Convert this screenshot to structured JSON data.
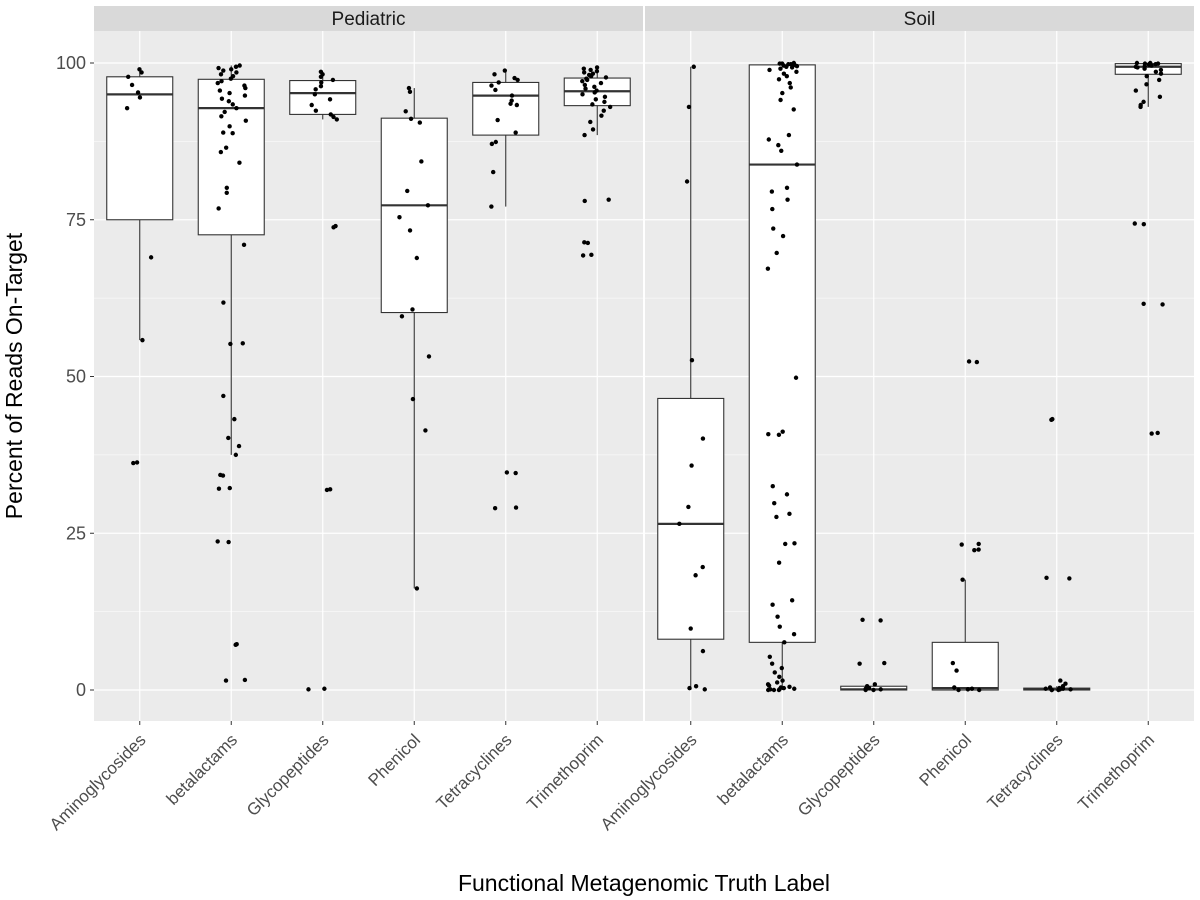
{
  "chart_data": {
    "type": "boxplot",
    "xlabel": "Functional Metagenomic Truth Label",
    "ylabel": "Percent of Reads On-Target",
    "ylim": [
      -5,
      105
    ],
    "yticks": [
      0,
      25,
      50,
      75,
      100
    ],
    "grid": true,
    "legend": "none",
    "categories": [
      "Aminoglycosides",
      "betalactams",
      "Glycopeptides",
      "Phenicol",
      "Tetracyclines",
      "Trimethoprim"
    ],
    "colors": {
      "panel_bg": "#ebebeb",
      "grid": "#ffffff",
      "strip_bg": "#d9d9d9",
      "box_fill": "#ffffff",
      "box_line": "#333333",
      "point": "#000000"
    },
    "facets": [
      {
        "name": "Pediatric",
        "boxes": [
          {
            "category": "Aminoglycosides",
            "whisker_low": 55.8,
            "q1": 75.0,
            "median": 95.0,
            "q3": 97.8,
            "whisker_high": 99.0,
            "points": [
              99.0,
              98.5,
              97.8,
              96.5,
              95.3,
              94.5,
              92.8,
              69.0,
              55.8,
              36.3,
              36.2
            ]
          },
          {
            "category": "betalactams",
            "whisker_low": 37.5,
            "q1": 72.6,
            "median": 92.8,
            "q3": 97.4,
            "whisker_high": 99.6,
            "points": [
              99.6,
              99.4,
              99.2,
              99.0,
              98.8,
              98.5,
              98.2,
              97.9,
              97.5,
              97.1,
              96.8,
              96.4,
              96.0,
              95.6,
              95.2,
              94.8,
              94.3,
              93.9,
              93.4,
              92.8,
              92.2,
              91.5,
              90.8,
              89.9,
              88.9,
              88.8,
              86.5,
              85.8,
              84.1,
              80.1,
              79.3,
              76.8,
              71.0,
              61.8,
              55.3,
              55.2,
              46.9,
              43.2,
              40.2,
              38.9,
              37.5,
              34.3,
              34.2,
              32.2,
              32.1,
              23.7,
              23.6,
              7.3,
              7.2,
              1.6,
              1.5
            ]
          },
          {
            "category": "Glycopeptides",
            "whisker_low": 91.0,
            "q1": 91.8,
            "median": 95.2,
            "q3": 97.2,
            "whisker_high": 98.6,
            "points": [
              98.6,
              98.2,
              97.8,
              97.3,
              96.9,
              96.3,
              95.8,
              95.0,
              94.2,
              93.3,
              92.4,
              91.8,
              91.4,
              91.0,
              74.0,
              73.8,
              32.0,
              31.9,
              0.2,
              0.1
            ]
          },
          {
            "category": "Phenicol",
            "whisker_low": 16.2,
            "q1": 60.2,
            "median": 77.3,
            "q3": 91.2,
            "whisker_high": 96.0,
            "points": [
              96.0,
              95.4,
              92.3,
              91.1,
              90.5,
              84.3,
              79.6,
              77.3,
              75.4,
              73.3,
              68.9,
              60.7,
              59.6,
              53.2,
              46.4,
              41.4,
              16.2
            ]
          },
          {
            "category": "Tetracyclines",
            "whisker_low": 77.1,
            "q1": 88.5,
            "median": 94.8,
            "q3": 96.9,
            "whisker_high": 98.8,
            "points": [
              98.8,
              98.2,
              97.6,
              97.3,
              96.9,
              96.4,
              95.7,
              94.8,
              94.0,
              93.5,
              93.3,
              90.9,
              88.9,
              87.4,
              87.1,
              82.6,
              77.1,
              34.7,
              34.6,
              29.1,
              29.0
            ]
          },
          {
            "category": "Trimethoprim",
            "whisker_low": 88.5,
            "q1": 93.2,
            "median": 95.5,
            "q3": 97.6,
            "whisker_high": 99.3,
            "points": [
              99.3,
              99.1,
              98.9,
              98.7,
              98.5,
              98.3,
              98.1,
              97.9,
              97.7,
              97.5,
              97.3,
              97.1,
              96.8,
              96.5,
              96.2,
              95.9,
              95.6,
              95.3,
              95.0,
              94.6,
              94.2,
              93.8,
              93.4,
              93.0,
              92.4,
              91.6,
              90.6,
              89.4,
              88.5,
              78.2,
              78.0,
              71.4,
              71.3,
              69.4,
              69.3
            ]
          }
        ]
      },
      {
        "name": "Soil",
        "boxes": [
          {
            "category": "Aminoglycosides",
            "whisker_low": 0.0,
            "q1": 8.1,
            "median": 26.5,
            "q3": 46.5,
            "whisker_high": 99.4,
            "points": [
              99.4,
              93.0,
              81.1,
              52.6,
              40.1,
              35.8,
              29.2,
              26.5,
              19.6,
              18.3,
              9.8,
              6.2,
              0.6,
              0.3,
              0.1
            ]
          },
          {
            "category": "betalactams",
            "whisker_low": 0.0,
            "q1": 7.6,
            "median": 83.8,
            "q3": 99.7,
            "whisker_high": 100.0,
            "points": [
              100.0,
              99.9,
              99.9,
              99.8,
              99.8,
              99.7,
              99.6,
              99.5,
              99.4,
              99.3,
              99.1,
              98.9,
              98.6,
              98.3,
              97.9,
              97.4,
              96.8,
              96.1,
              95.2,
              94.1,
              92.6,
              88.5,
              87.8,
              86.9,
              86.0,
              83.8,
              80.1,
              79.5,
              78.2,
              76.7,
              73.6,
              72.4,
              69.7,
              67.2,
              49.8,
              41.2,
              40.8,
              40.7,
              32.5,
              31.2,
              29.8,
              28.1,
              27.6,
              23.4,
              23.3,
              20.3,
              14.3,
              13.6,
              11.7,
              10.1,
              8.9,
              7.6,
              5.3,
              4.2,
              3.5,
              2.8,
              2.1,
              1.5,
              1.2,
              0.9,
              0.7,
              0.5,
              0.4,
              0.3,
              0.2,
              0.1,
              0.1,
              0.0,
              0.0,
              0.0
            ]
          },
          {
            "category": "Glycopeptides",
            "whisker_low": 0.0,
            "q1": 0.0,
            "median": 0.1,
            "q3": 0.6,
            "whisker_high": 0.9,
            "points": [
              11.2,
              11.1,
              4.3,
              4.2,
              0.9,
              0.6,
              0.3,
              0.2,
              0.1,
              0.0,
              0.0
            ]
          },
          {
            "category": "Phenicol",
            "whisker_low": 0.0,
            "q1": 0.0,
            "median": 0.3,
            "q3": 7.6,
            "whisker_high": 17.6,
            "points": [
              52.4,
              52.3,
              23.3,
              23.2,
              22.4,
              22.3,
              17.6,
              4.3,
              3.1,
              0.4,
              0.2,
              0.1,
              0.0,
              0.0
            ]
          },
          {
            "category": "Tetracyclines",
            "whisker_low": 0.0,
            "q1": 0.0,
            "median": 0.1,
            "q3": 0.3,
            "whisker_high": 0.6,
            "points": [
              43.2,
              43.1,
              17.9,
              17.8,
              1.5,
              1.0,
              0.6,
              0.4,
              0.3,
              0.2,
              0.2,
              0.1,
              0.1,
              0.0,
              0.0,
              0.0
            ]
          },
          {
            "category": "Trimethoprim",
            "whisker_low": 93.0,
            "q1": 98.2,
            "median": 99.4,
            "q3": 99.9,
            "whisker_high": 100.0,
            "points": [
              100.0,
              100.0,
              99.9,
              99.9,
              99.8,
              99.8,
              99.7,
              99.6,
              99.5,
              99.4,
              99.3,
              99.1,
              98.9,
              98.6,
              98.3,
              97.9,
              97.3,
              96.6,
              95.6,
              94.6,
              93.8,
              93.3,
              93.0,
              74.4,
              74.3,
              61.6,
              61.5,
              41.0,
              40.9
            ]
          }
        ]
      }
    ]
  }
}
